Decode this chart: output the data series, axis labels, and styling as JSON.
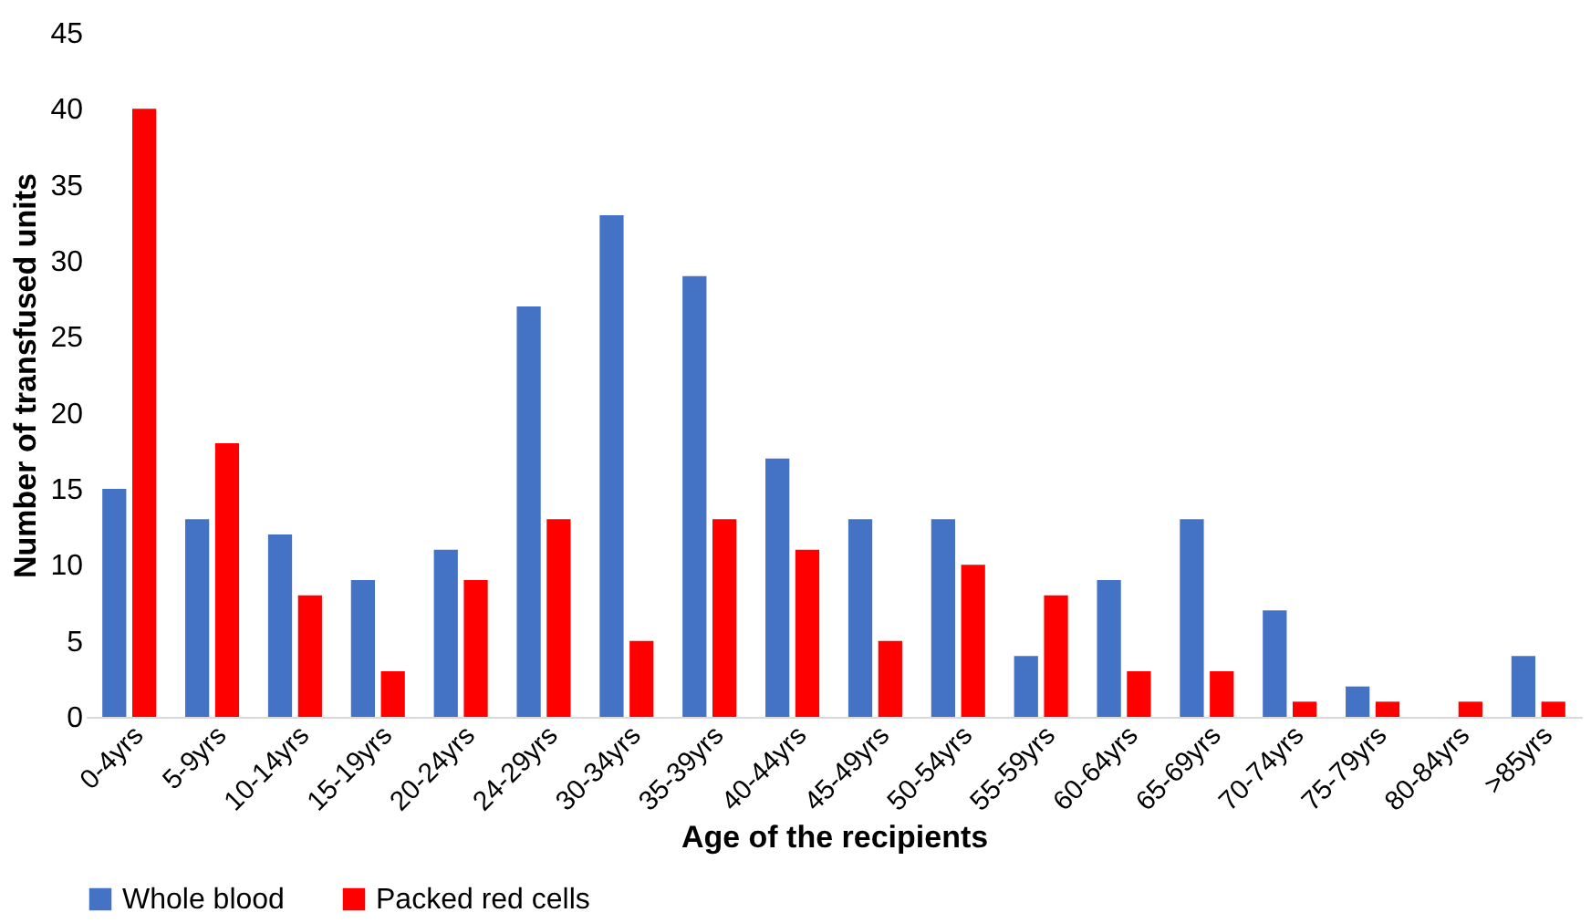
{
  "chart_data": {
    "type": "bar",
    "xlabel": "Age of the recipients",
    "ylabel": "Number of transfused units",
    "categories": [
      "0-4yrs",
      "5-9yrs",
      "10-14yrs",
      "15-19yrs",
      "20-24yrs",
      "24-29yrs",
      "30-34yrs",
      "35-39yrs",
      "40-44yrs",
      "45-49yrs",
      "50-54yrs",
      "55-59yrs",
      "60-64yrs",
      "65-69yrs",
      "70-74yrs",
      "75-79yrs",
      "80-84yrs",
      ">85yrs"
    ],
    "series": [
      {
        "name": "Whole blood",
        "color": "#4472c4",
        "values": [
          15,
          13,
          12,
          9,
          11,
          27,
          33,
          29,
          17,
          13,
          13,
          4,
          9,
          13,
          7,
          2,
          0,
          4
        ]
      },
      {
        "name": "Packed red cells",
        "color": "#ff0000",
        "values": [
          40,
          18,
          8,
          3,
          9,
          13,
          5,
          13,
          11,
          5,
          10,
          8,
          3,
          3,
          1,
          1,
          1,
          1
        ]
      }
    ],
    "ylim": [
      0,
      45
    ],
    "yticks": [
      0,
      5,
      10,
      15,
      20,
      25,
      30,
      35,
      40,
      45
    ],
    "legend": "bottom"
  }
}
